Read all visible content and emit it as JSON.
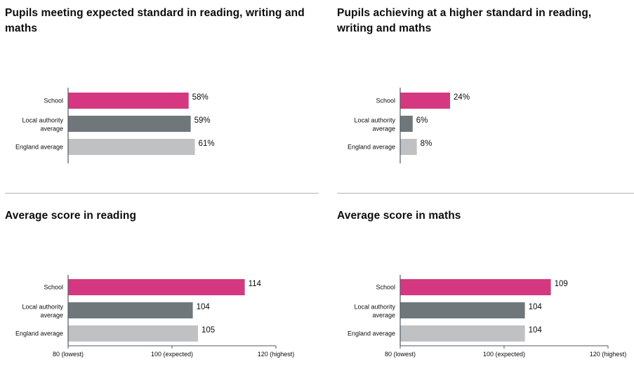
{
  "colors": {
    "school": "#d53880",
    "local_authority": "#6f777b",
    "england": "#bfc1c3",
    "axis": "#505a5f",
    "divider": "#b1b4b6"
  },
  "chart_data": [
    {
      "type": "bar",
      "title": "Pupils meeting expected standard in reading, writing and maths",
      "categories": [
        "School",
        "Local authority average",
        "England average"
      ],
      "values": [
        58,
        59,
        61
      ],
      "value_labels": [
        "58%",
        "59%",
        "61%"
      ],
      "xlim": [
        0,
        100
      ],
      "ticks": [],
      "grid": false
    },
    {
      "type": "bar",
      "title": "Pupils achieving at a higher standard in reading, writing and maths",
      "categories": [
        "School",
        "Local authority average",
        "England average"
      ],
      "values": [
        24,
        6,
        8
      ],
      "value_labels": [
        "24%",
        "6%",
        "8%"
      ],
      "xlim": [
        0,
        100
      ],
      "ticks": [],
      "grid": false
    },
    {
      "type": "bar",
      "title": "Average score in reading",
      "categories": [
        "School",
        "Local authority average",
        "England average"
      ],
      "values": [
        114,
        104,
        105
      ],
      "value_labels": [
        "114",
        "104",
        "105"
      ],
      "xlim": [
        80,
        120
      ],
      "ticks": [
        {
          "value": 80,
          "label": "80 (lowest)"
        },
        {
          "value": 100,
          "label": "100 (expected)"
        },
        {
          "value": 120,
          "label": "120 (highest)"
        }
      ],
      "grid": false
    },
    {
      "type": "bar",
      "title": "Average score in maths",
      "categories": [
        "School",
        "Local authority average",
        "England average"
      ],
      "values": [
        109,
        104,
        104
      ],
      "value_labels": [
        "109",
        "104",
        "104"
      ],
      "xlim": [
        80,
        120
      ],
      "ticks": [
        {
          "value": 80,
          "label": "80 (lowest)"
        },
        {
          "value": 100,
          "label": "100 (expected)"
        },
        {
          "value": 120,
          "label": "120 (highest)"
        }
      ],
      "grid": false
    }
  ]
}
